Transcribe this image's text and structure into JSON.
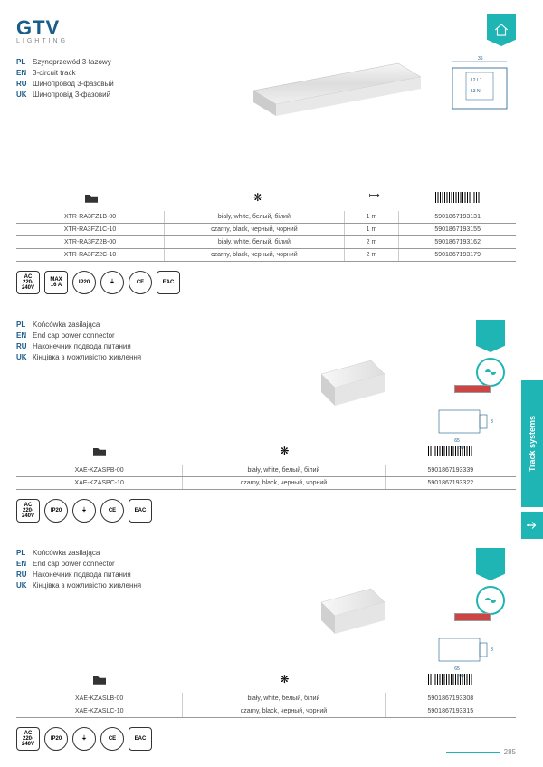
{
  "logo": {
    "main": "GTV",
    "sub": "LIGHTING"
  },
  "pageNumber": "285",
  "sideTab": "Track systems",
  "product1": {
    "names": {
      "pl": "Szynoprzewód 3-fazowy",
      "en": "3-circuit track",
      "ru": "Шинопровод 3-фазовый",
      "uk": "Шинопровід 3-фазовий"
    },
    "headers": {
      "len": "1m"
    },
    "rows": [
      {
        "code": "XTR-RA3FZ1B-00",
        "color": "biały, white, белый, білий",
        "len": "1 m",
        "ean": "5901867193131"
      },
      {
        "code": "XTR-RA3FZ1C-10",
        "color": "czarny, black, черный, чорний",
        "len": "1 m",
        "ean": "5901867193155"
      },
      {
        "code": "XTR-RA3FZ2B-00",
        "color": "biały, white, белый, білий",
        "len": "2 m",
        "ean": "5901867193162"
      },
      {
        "code": "XTR-RA3FZ2C-10",
        "color": "czarny, black, черный, чорний",
        "len": "2 m",
        "ean": "5901867193179"
      }
    ],
    "badges": [
      "AC\n220-240V",
      "MAX\n16 A",
      "IP20",
      "⏚",
      "CE",
      "EAC"
    ]
  },
  "product2": {
    "names": {
      "pl": "Końcówka zasilająca",
      "en": "End cap power connector",
      "ru": "Наконечник подвода питания",
      "uk": "Кінцівка з можливістю живлення"
    },
    "rows": [
      {
        "code": "XAE-KZASPB-00",
        "color": "biały, white, белый, білий",
        "ean": "5901867193339"
      },
      {
        "code": "XAE-KZASPC-10",
        "color": "czarny, black, черный, чорний",
        "ean": "5901867193322"
      }
    ],
    "badges": [
      "AC\n220-240V",
      "IP20",
      "⏚",
      "CE",
      "EAC"
    ],
    "dims": {
      "w": "65",
      "h": "35",
      "total": "99"
    }
  },
  "product3": {
    "names": {
      "pl": "Końcówka zasilająca",
      "en": "End cap power connector",
      "ru": "Наконечник подвода питания",
      "uk": "Кінцівка з можливістю живлення"
    },
    "rows": [
      {
        "code": "XAE-KZASLB-00",
        "color": "biały, white, белый, білий",
        "ean": "5901867193308"
      },
      {
        "code": "XAE-KZASLC-10",
        "color": "czarny, black, черный, чорний",
        "ean": "5901867193315"
      }
    ],
    "badges": [
      "AC\n220-240V",
      "IP20",
      "⏚",
      "CE",
      "EAC"
    ],
    "dims": {
      "w": "65",
      "h": "35",
      "total": "99"
    }
  }
}
